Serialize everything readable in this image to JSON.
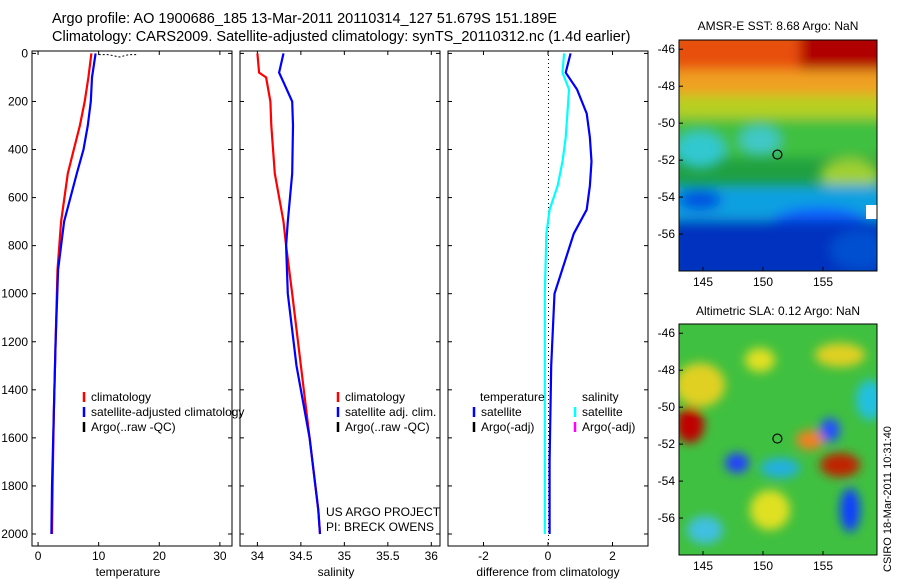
{
  "header": {
    "line1": "Argo profile: AO 1900686_185 13-Mar-2011 20110314_127 51.679S 151.189E",
    "line2": "Climatology: CARS2009. Satellite-adjusted climatology: synTS_20110312.nc (1.4d earlier)"
  },
  "side_stamp": "CSIRO 18-Mar-2011 10:31:40",
  "colors": {
    "climatology": "#ff0000",
    "satellite": "#0000ff",
    "argo": "#000000",
    "diff_temperature": "#0000ff",
    "diff_salinity": "#00ffff",
    "argo_adj_salinity": "#ff00ff"
  },
  "chart_data": [
    {
      "type": "line",
      "xlabel": "temperature",
      "ylim": [
        2050,
        -10
      ],
      "xlim": [
        -1,
        32
      ],
      "xticks": [
        0,
        10,
        20,
        30
      ],
      "yticks": [
        0,
        200,
        400,
        600,
        800,
        1000,
        1200,
        1400,
        1600,
        1800,
        2000
      ],
      "legend": [
        "climatology",
        "satellite-adjusted climatology",
        "Argo(..raw -QC)"
      ],
      "series": [
        {
          "name": "climatology",
          "x": [
            8.8,
            8.3,
            7.7,
            6.9,
            5.9,
            4.9,
            3.8,
            3.2,
            2.9,
            2.6,
            2.4,
            2.3
          ],
          "y": [
            0,
            100,
            200,
            300,
            400,
            500,
            700,
            900,
            1200,
            1500,
            1800,
            2000
          ]
        },
        {
          "name": "satellite-adjusted climatology",
          "x": [
            9.5,
            8.9,
            8.7,
            8.2,
            7.5,
            6.4,
            4.3,
            3.3,
            2.9,
            2.6,
            2.3,
            2.2
          ],
          "y": [
            0,
            100,
            200,
            300,
            400,
            500,
            700,
            900,
            1200,
            1500,
            1800,
            2000
          ]
        },
        {
          "name": "Argo(..raw -QC)",
          "x": [
            10.0,
            11.5,
            12.5,
            13.5,
            14.2,
            15.0,
            16.5
          ],
          "y": [
            5,
            5,
            10,
            15,
            10,
            5,
            5
          ]
        }
      ]
    },
    {
      "type": "line",
      "xlabel": "salinity",
      "ylim": [
        2050,
        -10
      ],
      "xlim": [
        33.8,
        36.1
      ],
      "xticks": [
        34,
        34.5,
        35,
        35.5,
        36
      ],
      "xtick_labels": [
        "34",
        "34.5",
        "35",
        "35.5",
        "36"
      ],
      "legend": [
        "climatology",
        "satellite adj. clim.",
        "Argo(..raw -QC)"
      ],
      "annotation": [
        "US ARGO PROJECT",
        "PI: BRECK OWENS"
      ],
      "series": [
        {
          "name": "climatology",
          "x": [
            34.0,
            34.02,
            34.1,
            34.15,
            34.16,
            34.2,
            34.3,
            34.33,
            34.4,
            34.5,
            34.6,
            34.7,
            34.72
          ],
          "y": [
            0,
            80,
            100,
            200,
            300,
            500,
            700,
            800,
            1000,
            1300,
            1600,
            1900,
            2000
          ]
        },
        {
          "name": "satellite adj. clim.",
          "x": [
            34.3,
            34.25,
            34.3,
            34.4,
            34.41,
            34.4,
            34.35,
            34.33,
            34.35,
            34.45,
            34.6,
            34.7,
            34.72
          ],
          "y": [
            0,
            80,
            120,
            200,
            300,
            500,
            700,
            800,
            1000,
            1300,
            1600,
            1900,
            2000
          ]
        }
      ]
    },
    {
      "type": "line",
      "xlabel": "difference from climatology",
      "ylim": [
        2050,
        -10
      ],
      "xlim": [
        -3.1,
        3.1
      ],
      "xticks": [
        -2,
        0,
        2
      ],
      "legend_columns": [
        {
          "title": "temperature",
          "items": [
            "satellite",
            "Argo(-adj)"
          ]
        },
        {
          "title": "salinity",
          "items": [
            "satellite",
            "Argo(-adj)"
          ]
        }
      ],
      "series": [
        {
          "name": "temperature satellite",
          "x": [
            0.7,
            0.55,
            0.9,
            1.2,
            1.3,
            1.35,
            1.3,
            1.2,
            0.8,
            0.2,
            0.1,
            0.05,
            0.05
          ],
          "y": [
            0,
            80,
            150,
            250,
            350,
            450,
            550,
            650,
            750,
            1000,
            1300,
            1700,
            2000
          ]
        },
        {
          "name": "salinity satellite",
          "x": [
            0.5,
            0.45,
            0.65,
            0.6,
            0.55,
            0.45,
            0.3,
            0.05,
            -0.05,
            -0.1,
            -0.1,
            -0.1,
            -0.1
          ],
          "y": [
            0,
            80,
            150,
            250,
            350,
            450,
            550,
            650,
            750,
            1000,
            1300,
            1700,
            2000
          ]
        }
      ]
    },
    {
      "type": "heatmap",
      "title": "AMSR-E SST: 8.68 Argo: NaN",
      "xticks": [
        145,
        150,
        155
      ],
      "yticks": [
        -46,
        -48,
        -50,
        -52,
        -54,
        -56
      ],
      "xlim": [
        143,
        159.5
      ],
      "ylim": [
        -58,
        -45.5
      ],
      "marker": {
        "lon": 151.2,
        "lat": -51.7
      }
    },
    {
      "type": "heatmap",
      "title": "Altimetric SLA: 0.12 Argo: NaN",
      "xticks": [
        145,
        150,
        155
      ],
      "yticks": [
        -46,
        -48,
        -50,
        -52,
        -54,
        -56
      ],
      "xlim": [
        143,
        159.5
      ],
      "ylim": [
        -58,
        -45.5
      ],
      "marker": {
        "lon": 151.2,
        "lat": -51.7
      }
    }
  ]
}
